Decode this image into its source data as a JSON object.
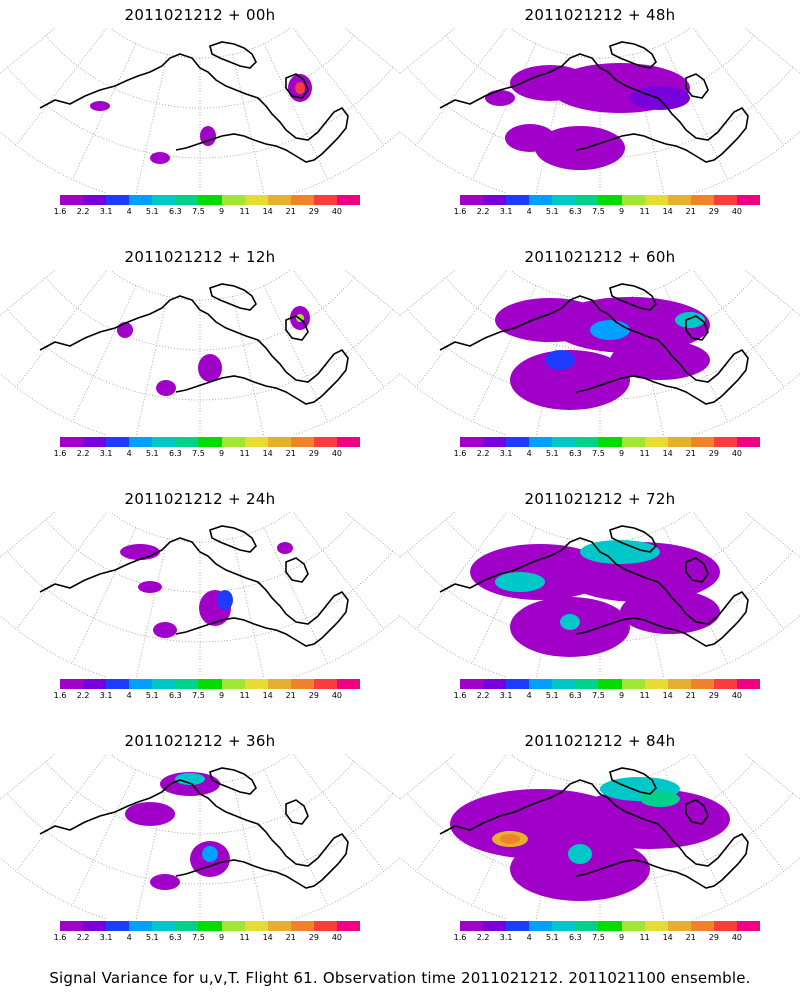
{
  "panels": [
    {
      "title": "2011021212 + 00h",
      "time": "00h"
    },
    {
      "title": "2011021212 + 48h",
      "time": "48h"
    },
    {
      "title": "2011021212 + 12h",
      "time": "12h"
    },
    {
      "title": "2011021212 + 60h",
      "time": "60h"
    },
    {
      "title": "2011021212 + 24h",
      "time": "24h"
    },
    {
      "title": "2011021212 + 72h",
      "time": "72h"
    },
    {
      "title": "2011021212 + 36h",
      "time": "36h"
    },
    {
      "title": "2011021212 + 84h",
      "time": "84h"
    }
  ],
  "colorbar": {
    "labels": [
      "1.6",
      "2.2",
      "3.1",
      "4",
      "5.1",
      "6.3",
      "7.5",
      "9",
      "11",
      "14",
      "21",
      "29",
      "40"
    ],
    "colors": [
      "#a000c8",
      "#7800dc",
      "#1e3cff",
      "#00a0ff",
      "#00c8c8",
      "#00d28c",
      "#00dc00",
      "#a0e632",
      "#e6dc32",
      "#e6af2d",
      "#f08228",
      "#fa3c3c",
      "#f00082"
    ]
  },
  "footer": "Signal Variance for u,v,T. Flight 61. Observation time 2011021212. 2011021100 ensemble."
}
